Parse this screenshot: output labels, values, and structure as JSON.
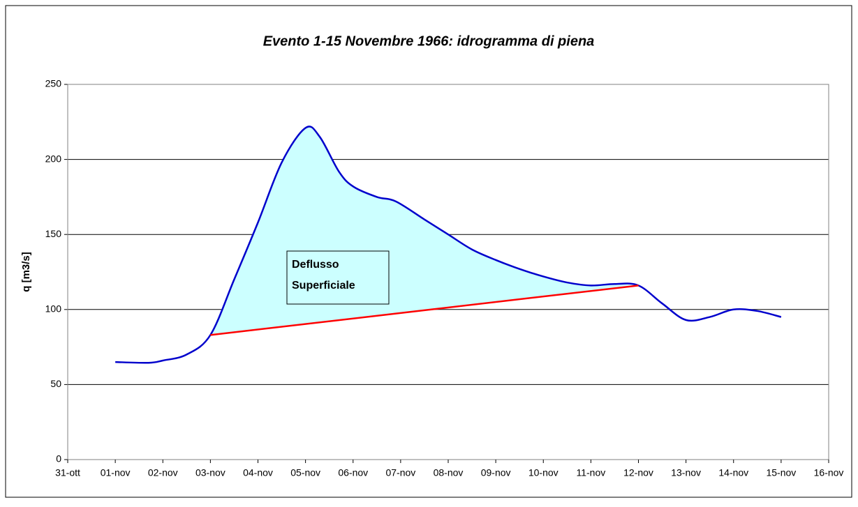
{
  "chart_data": {
    "type": "line",
    "title": "Evento 1-15 Novembre 1966: idrogramma di piena",
    "y_label": "q [m3/s]",
    "annotation": [
      "Deflusso",
      "Superficiale"
    ],
    "xlim": [
      0,
      16
    ],
    "xticks": [
      {
        "value": 0,
        "label": "31-ott"
      },
      {
        "value": 1,
        "label": "01-nov"
      },
      {
        "value": 2,
        "label": "02-nov"
      },
      {
        "value": 3,
        "label": "03-nov"
      },
      {
        "value": 4,
        "label": "04-nov"
      },
      {
        "value": 5,
        "label": "05-nov"
      },
      {
        "value": 6,
        "label": "06-nov"
      },
      {
        "value": 7,
        "label": "07-nov"
      },
      {
        "value": 8,
        "label": "08-nov"
      },
      {
        "value": 9,
        "label": "09-nov"
      },
      {
        "value": 10,
        "label": "10-nov"
      },
      {
        "value": 11,
        "label": "11-nov"
      },
      {
        "value": 12,
        "label": "12-nov"
      },
      {
        "value": 13,
        "label": "13-nov"
      },
      {
        "value": 14,
        "label": "14-nov"
      },
      {
        "value": 15,
        "label": "15-nov"
      },
      {
        "value": 16,
        "label": "16-nov"
      }
    ],
    "ylim": [
      0,
      250
    ],
    "yticks": [
      0,
      50,
      100,
      150,
      200,
      250
    ],
    "grid": true,
    "fill_color": "#ccffff",
    "series": [
      {
        "color": "#0000cc",
        "x": [
          1,
          1.7,
          2,
          2.5,
          3,
          3.5,
          4,
          4.5,
          5,
          5.3,
          5.7,
          6,
          6.5,
          6.9,
          7.5,
          8,
          8.5,
          9,
          9.5,
          10,
          10.5,
          11,
          11.5,
          12,
          12.5,
          13,
          13.5,
          14,
          14.5,
          15
        ],
        "values": [
          65,
          64.5,
          66,
          70,
          83,
          120,
          158,
          198,
          221,
          215,
          192,
          182,
          175,
          172,
          160,
          150,
          140,
          133,
          127,
          122,
          118,
          116,
          117,
          116,
          104,
          93,
          95,
          100,
          99,
          95
        ]
      },
      {
        "color": "#ff0000",
        "x": [
          3,
          12
        ],
        "values": [
          83,
          116
        ]
      }
    ]
  }
}
